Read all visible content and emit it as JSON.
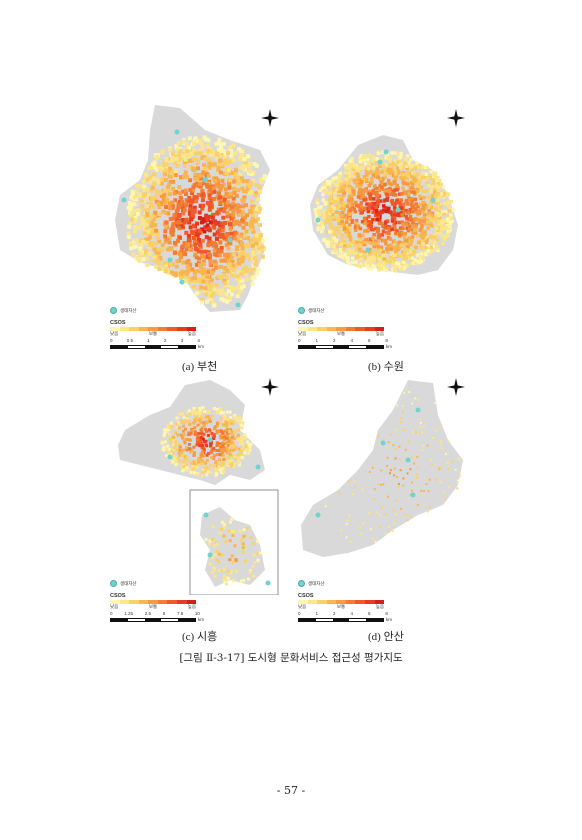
{
  "panels": [
    {
      "id": "a",
      "caption": "(a) 부천",
      "legend": {
        "marker_label": "생태자산",
        "title": "CSOS",
        "low": "낮음",
        "mid": "보통",
        "high": "높음",
        "scale_ticks": [
          "0",
          "0.5",
          "1",
          "2",
          "3",
          "4"
        ],
        "scale_unit": "km"
      }
    },
    {
      "id": "b",
      "caption": "(b) 수원",
      "legend": {
        "marker_label": "생태자산",
        "title": "CSOS",
        "low": "낮음",
        "mid": "보통",
        "high": "높음",
        "scale_ticks": [
          "0",
          "1",
          "2",
          "4",
          "6",
          "8"
        ],
        "scale_unit": "km"
      }
    },
    {
      "id": "c",
      "caption": "(c) 시흥",
      "legend": {
        "marker_label": "생태자산",
        "title": "CSOS",
        "low": "낮음",
        "mid": "보통",
        "high": "높음",
        "scale_ticks": [
          "0",
          "1.25",
          "2.5",
          "5",
          "7.5",
          "10"
        ],
        "scale_unit": "km"
      }
    },
    {
      "id": "d",
      "caption": "(d) 안산",
      "legend": {
        "marker_label": "생태자산",
        "title": "CSOS",
        "low": "낮음",
        "mid": "보통",
        "high": "높음",
        "scale_ticks": [
          "0",
          "1",
          "2",
          "4",
          "6",
          "8"
        ],
        "scale_unit": "km"
      }
    }
  ],
  "figure_caption": "[그림 Ⅱ-3-17] 도시형 문화서비스 접근성 평가지도",
  "page_number": "- 57 -",
  "colors": {
    "ramp": [
      "#fff6b0",
      "#fde58a",
      "#fbd06a",
      "#f9b552",
      "#f79a42",
      "#f47b34",
      "#ef5a2a",
      "#e63a22",
      "#d41f1b"
    ],
    "land": "#d9d9d9",
    "marker": "#6fd3cf"
  }
}
